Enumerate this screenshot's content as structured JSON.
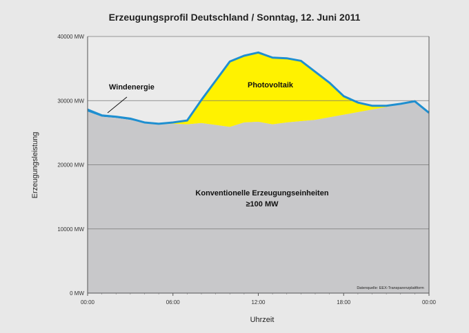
{
  "chart_data": {
    "type": "area",
    "title": "Erzeugungsprofil Deutschland / Sonntag, 12. Juni 2011",
    "xlabel": "Uhrzeit",
    "ylabel": "Erzeugungsleistung",
    "xlim": [
      0,
      24
    ],
    "ylim": [
      0,
      40000
    ],
    "x_ticks": [
      {
        "value": 0,
        "label": "00:00"
      },
      {
        "value": 6,
        "label": "06:00"
      },
      {
        "value": 12,
        "label": "12:00"
      },
      {
        "value": 18,
        "label": "18:00"
      },
      {
        "value": 24,
        "label": "00:00"
      }
    ],
    "y_ticks": [
      {
        "value": 0,
        "label": "0 MW"
      },
      {
        "value": 10000,
        "label": "10000 MW"
      },
      {
        "value": 20000,
        "label": "20000 MW"
      },
      {
        "value": 30000,
        "label": "30000 MW"
      },
      {
        "value": 40000,
        "label": "40000 MW"
      }
    ],
    "grid": true,
    "x": [
      0,
      1,
      2,
      3,
      4,
      5,
      6,
      7,
      8,
      9,
      10,
      11,
      12,
      13,
      14,
      15,
      16,
      17,
      18,
      19,
      20,
      21,
      22,
      23,
      24
    ],
    "series": [
      {
        "name": "Konventionelle Erzeugungseinheiten ≥100 MW",
        "color": "#c8c8ca",
        "values": [
          28300,
          27500,
          27300,
          27000,
          26500,
          26300,
          26400,
          26300,
          26500,
          26200,
          25900,
          26600,
          26700,
          26300,
          26600,
          26800,
          27000,
          27400,
          27800,
          28200,
          28600,
          29000,
          29400,
          29800,
          28100
        ]
      },
      {
        "name": "Photovoltaik",
        "color": "#fff200",
        "values": [
          0,
          0,
          0,
          0,
          0,
          0,
          100,
          500,
          3500,
          6800,
          10100,
          10300,
          10700,
          10300,
          9900,
          9300,
          7400,
          5300,
          2800,
          1400,
          500,
          100,
          0,
          0,
          0
        ]
      },
      {
        "name": "Windenergie",
        "color": "#1f8fd0",
        "values": [
          300,
          200,
          200,
          200,
          100,
          100,
          100,
          100,
          100,
          100,
          100,
          100,
          100,
          100,
          100,
          100,
          100,
          100,
          100,
          100,
          100,
          100,
          100,
          100,
          0
        ]
      }
    ],
    "annotations": [
      {
        "text": "Windenergie"
      },
      {
        "text": "Photovoltaik"
      },
      {
        "text": "Konventionelle Erzeugungseinheiten"
      },
      {
        "text": "≥100 MW"
      }
    ],
    "source": "Datenquelle: EEX-Transparenzplattform"
  }
}
